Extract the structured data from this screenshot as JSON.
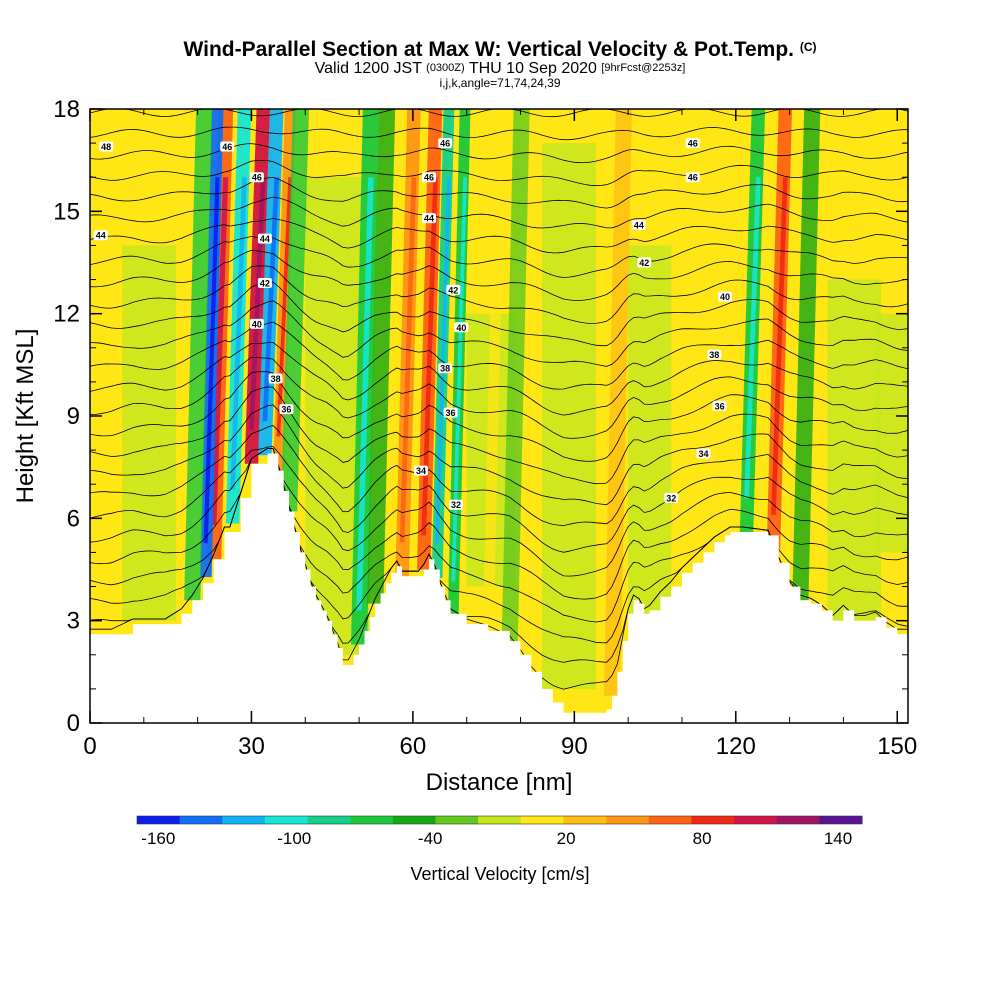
{
  "header": {
    "title": "Wind-Parallel Section at Max W: Vertical Velocity & Pot.Temp.",
    "title_tag": "(C)",
    "valid_prefix": "Valid 1200 JST",
    "valid_utc": "(0300Z)",
    "valid_suffix": "THU 10 Sep 2020",
    "forecast_tag": "[9hrFcst@2253z]",
    "params": "i,j,k,angle=71,74,24,39"
  },
  "chart_data": {
    "type": "heatmap",
    "xlabel": "Distance [nm]",
    "ylabel": "Height [Kft MSL]",
    "xlim": [
      0,
      152
    ],
    "ylim": [
      0,
      18
    ],
    "x_ticks": [
      0,
      30,
      60,
      90,
      120,
      150
    ],
    "y_ticks": [
      0,
      3,
      6,
      9,
      12,
      15,
      18
    ],
    "x_minor_step": 10,
    "y_minor_step": 1,
    "terrain": {
      "x": [
        0,
        4,
        8,
        14,
        17,
        19,
        21,
        23,
        25,
        26,
        28,
        30,
        33,
        34,
        35,
        36,
        37,
        38,
        39,
        40,
        41,
        42,
        43,
        44,
        45,
        46,
        47,
        48,
        49,
        50,
        51,
        52,
        53,
        54,
        55,
        56,
        57,
        58,
        61,
        62,
        63,
        64,
        65,
        66,
        67,
        70,
        74,
        78,
        80,
        82,
        84,
        86,
        88,
        90,
        92,
        94,
        96,
        97,
        98,
        99,
        100,
        101,
        102,
        103,
        104,
        106,
        108,
        110,
        112,
        114,
        116,
        118,
        119,
        120,
        121,
        126,
        128,
        130,
        132,
        134,
        136,
        138,
        140,
        142,
        144,
        146,
        148,
        150,
        152
      ],
      "y": [
        2.6,
        2.6,
        2.9,
        2.9,
        3.2,
        3.6,
        4.1,
        4.8,
        5.6,
        5.6,
        6.6,
        7.6,
        7.9,
        7.9,
        7.4,
        6.8,
        6.2,
        5.6,
        5.0,
        4.5,
        4.0,
        3.6,
        3.3,
        3.0,
        2.6,
        2.2,
        1.7,
        1.7,
        2.0,
        2.3,
        2.7,
        3.1,
        3.5,
        3.8,
        4.1,
        4.4,
        4.6,
        4.3,
        4.3,
        4.5,
        4.8,
        4.5,
        4.0,
        3.6,
        3.2,
        2.9,
        2.7,
        2.4,
        2.0,
        1.5,
        1.0,
        0.6,
        0.3,
        0.3,
        0.3,
        0.3,
        0.4,
        0.8,
        1.5,
        2.4,
        3.2,
        3.6,
        3.5,
        3.2,
        3.3,
        3.7,
        4.0,
        4.4,
        4.7,
        5.0,
        5.3,
        5.5,
        5.6,
        5.6,
        5.6,
        5.5,
        4.7,
        4.0,
        3.6,
        3.5,
        3.3,
        3.0,
        3.3,
        3.0,
        3.0,
        3.1,
        2.8,
        2.6,
        2.6
      ]
    },
    "color_scale": {
      "label": "Vertical Velocity [cm/s]",
      "tick_labels": [
        "-160",
        "-100",
        "-40",
        "20",
        "80",
        "140"
      ],
      "tick_values": [
        -160,
        -100,
        -40,
        20,
        80,
        140
      ],
      "bins": [
        -160,
        -140,
        -120,
        -100,
        -80,
        -60,
        -40,
        -20,
        0,
        20,
        40,
        60,
        80,
        100,
        120,
        140,
        160
      ],
      "colors": [
        "#0c1ef0",
        "#0f6ef5",
        "#13b4f5",
        "#16e6d2",
        "#15d08a",
        "#1ec83c",
        "#16a814",
        "#62c81e",
        "#c8e61e",
        "#ffe614",
        "#ffbe14",
        "#ff9614",
        "#ff6414",
        "#f02814",
        "#d21446",
        "#a01464",
        "#5a1496"
      ]
    },
    "velocity_bands": [
      {
        "x": 23,
        "width": 2.8,
        "value": 90
      },
      {
        "x": 21.5,
        "width": 2.2,
        "value": -130
      },
      {
        "x": 19,
        "width": 3,
        "value": -50
      },
      {
        "x": 26.5,
        "width": 2.5,
        "value": -90
      },
      {
        "x": 30,
        "width": 2.5,
        "value": 120
      },
      {
        "x": 32.5,
        "width": 2.5,
        "value": -110
      },
      {
        "x": 35,
        "width": 2,
        "value": 70
      },
      {
        "x": 37,
        "width": 3,
        "value": -50
      },
      {
        "x": 50,
        "width": 3,
        "value": -60
      },
      {
        "x": 53,
        "width": 3,
        "value": -30
      },
      {
        "x": 58,
        "width": 2.5,
        "value": 60
      },
      {
        "x": 62,
        "width": 2.5,
        "value": 80
      },
      {
        "x": 64.5,
        "width": 2,
        "value": -80
      },
      {
        "x": 67.5,
        "width": 2,
        "value": -60
      },
      {
        "x": 74,
        "width": 2,
        "value": 30
      },
      {
        "x": 78,
        "width": 3,
        "value": -20
      },
      {
        "x": 97,
        "width": 3,
        "value": 40
      },
      {
        "x": 114,
        "width": 3,
        "value": 30
      },
      {
        "x": 122,
        "width": 2.5,
        "value": -60
      },
      {
        "x": 127,
        "width": 2.5,
        "value": 80
      },
      {
        "x": 132,
        "width": 3,
        "value": -40
      }
    ],
    "theta_contour_labels": [
      {
        "text": "48",
        "x": 3,
        "y": 16.9
      },
      {
        "text": "44",
        "x": 2,
        "y": 14.3
      },
      {
        "text": "46",
        "x": 25.5,
        "y": 16.9
      },
      {
        "text": "46",
        "x": 31,
        "y": 16.0
      },
      {
        "text": "44",
        "x": 32.5,
        "y": 14.2
      },
      {
        "text": "42",
        "x": 32.5,
        "y": 12.9
      },
      {
        "text": "40",
        "x": 31,
        "y": 11.7
      },
      {
        "text": "38",
        "x": 34.5,
        "y": 10.1
      },
      {
        "text": "36",
        "x": 36.5,
        "y": 9.2
      },
      {
        "text": "46",
        "x": 66,
        "y": 17.0
      },
      {
        "text": "46",
        "x": 63,
        "y": 16.0
      },
      {
        "text": "44",
        "x": 63,
        "y": 14.8
      },
      {
        "text": "42",
        "x": 67.5,
        "y": 12.7
      },
      {
        "text": "40",
        "x": 69,
        "y": 11.6
      },
      {
        "text": "38",
        "x": 66,
        "y": 10.4
      },
      {
        "text": "36",
        "x": 67,
        "y": 9.1
      },
      {
        "text": "34",
        "x": 61.5,
        "y": 7.4
      },
      {
        "text": "32",
        "x": 68,
        "y": 6.4
      },
      {
        "text": "46",
        "x": 112,
        "y": 17.0
      },
      {
        "text": "46",
        "x": 112,
        "y": 16.0
      },
      {
        "text": "44",
        "x": 102,
        "y": 14.6
      },
      {
        "text": "42",
        "x": 103,
        "y": 13.5
      },
      {
        "text": "40",
        "x": 118,
        "y": 12.5
      },
      {
        "text": "38",
        "x": 116,
        "y": 10.8
      },
      {
        "text": "36",
        "x": 117,
        "y": 9.3
      },
      {
        "text": "34",
        "x": 114,
        "y": 7.9
      },
      {
        "text": "32",
        "x": 108,
        "y": 6.6
      }
    ]
  }
}
